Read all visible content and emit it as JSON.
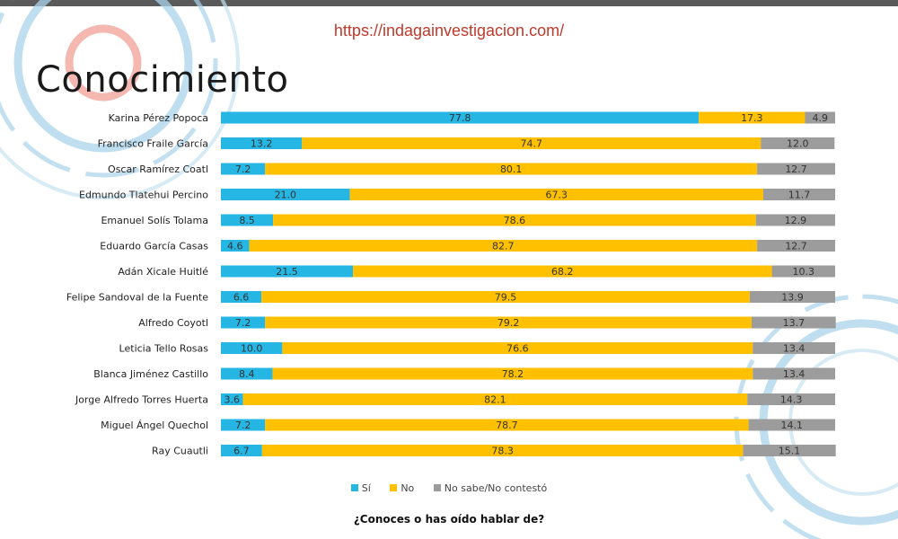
{
  "header": {
    "url": "https://indagainvestigacion.com/",
    "title": "Conocimiento"
  },
  "colors": {
    "si": "#26b6e3",
    "no": "#ffc000",
    "ns": "#9c9c9c",
    "deco_blue": "#a9d3ea",
    "deco_salmon": "#f3b0a8"
  },
  "footer": {
    "question": "¿Conoces o has oído hablar de?"
  },
  "chart_data": {
    "type": "bar",
    "orientation": "horizontal",
    "stacked": true,
    "percent": true,
    "xlim": [
      0,
      100
    ],
    "legend_position": "bottom",
    "categories": [
      "Karina Pérez Popoca",
      "Francisco Fraile García",
      "Oscar Ramírez Coatl",
      "Edmundo Tlatehui Percino",
      "Emanuel Solís Tolama",
      "Eduardo García Casas",
      "Adán Xicale Huitlé",
      "Felipe Sandoval de la Fuente",
      "Alfredo Coyotl",
      "Leticia Tello Rosas",
      "Blanca Jiménez Castillo",
      "Jorge Alfredo Torres Huerta",
      "Miguel Ángel Quechol",
      "Ray Cuautli"
    ],
    "series": [
      {
        "name": "Sí",
        "values": [
          77.8,
          13.2,
          7.2,
          21.0,
          8.5,
          4.6,
          21.5,
          6.6,
          7.2,
          10.0,
          8.4,
          3.6,
          7.2,
          6.7
        ]
      },
      {
        "name": "No",
        "values": [
          17.3,
          74.7,
          80.1,
          67.3,
          78.6,
          82.7,
          68.2,
          79.5,
          79.2,
          76.6,
          78.2,
          82.1,
          78.7,
          78.3
        ]
      },
      {
        "name": "No sabe/No contestó",
        "values": [
          4.9,
          12.0,
          12.7,
          11.7,
          12.9,
          12.7,
          10.3,
          13.9,
          13.7,
          13.4,
          13.4,
          14.3,
          14.1,
          15.1
        ]
      }
    ]
  }
}
